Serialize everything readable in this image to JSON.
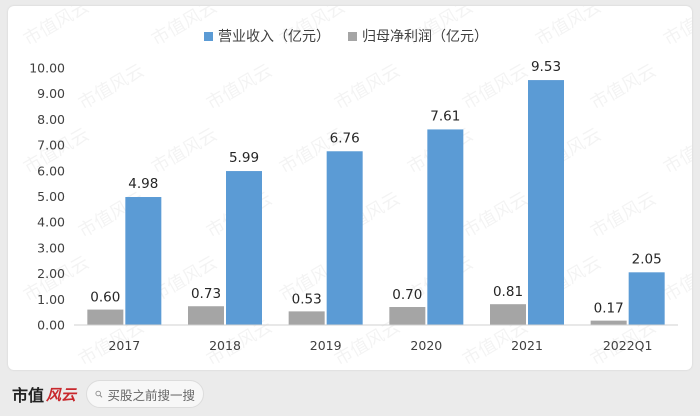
{
  "brand": {
    "name": "市值",
    "script": "风云",
    "watermark": "市值风云"
  },
  "search": {
    "placeholder": "买股之前搜一搜",
    "icon": "search-icon"
  },
  "chart_data": {
    "type": "bar",
    "categories": [
      "2017",
      "2018",
      "2019",
      "2020",
      "2021",
      "2022Q1"
    ],
    "series": [
      {
        "name": "营业收入（亿元）",
        "color": "#5b9bd5",
        "values": [
          4.98,
          5.99,
          6.76,
          7.61,
          9.53,
          2.05
        ]
      },
      {
        "name": "归母净利润（亿元）",
        "color": "#a5a5a5",
        "values": [
          0.6,
          0.73,
          0.53,
          0.7,
          0.81,
          0.17
        ]
      }
    ],
    "yticks": [
      "0.00",
      "1.00",
      "2.00",
      "3.00",
      "4.00",
      "5.00",
      "6.00",
      "7.00",
      "8.00",
      "9.00",
      "10.00"
    ],
    "ylim": [
      0,
      10
    ],
    "legend": "top",
    "grid": false,
    "data_labels": true
  }
}
